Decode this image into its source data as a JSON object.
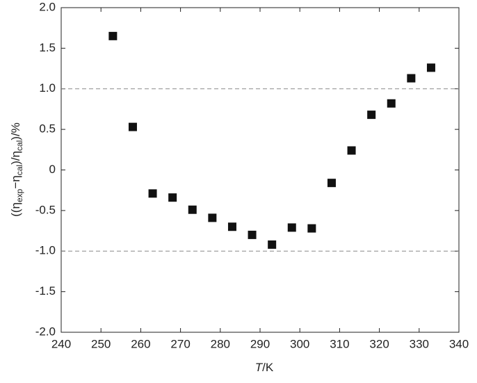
{
  "chart_data": {
    "type": "scatter",
    "x_label": {
      "parts": [
        "T",
        "/K"
      ]
    },
    "y_label": {
      "parts": [
        "((η",
        "exp",
        "−η",
        "cal",
        ")/η",
        "cal",
        ")/%"
      ]
    },
    "x": [
      253,
      258,
      263,
      268,
      273,
      278,
      283,
      288,
      293,
      298,
      303,
      308,
      313,
      318,
      323,
      328,
      333
    ],
    "values": [
      1.65,
      0.53,
      -0.29,
      -0.34,
      -0.49,
      -0.59,
      -0.7,
      -0.8,
      -0.92,
      -0.71,
      -0.72,
      -0.16,
      0.24,
      0.68,
      0.82,
      1.13,
      1.26
    ],
    "color": "#111111",
    "xlim": [
      240,
      340
    ],
    "xticks": [
      240,
      250,
      260,
      270,
      280,
      290,
      300,
      310,
      320,
      330,
      340
    ],
    "ylim": [
      -2,
      2
    ],
    "yticks": [
      {
        "value": 2,
        "label": "2.0"
      },
      {
        "value": 1.5,
        "label": "1.5"
      },
      {
        "value": 1,
        "label": "1.0"
      },
      {
        "value": 0.5,
        "label": "0.5"
      },
      0,
      -0.5,
      {
        "value": -1,
        "label": "-1.0"
      },
      -1.5,
      {
        "value": -2,
        "label": "-2.0"
      }
    ],
    "hlines": [
      1,
      -1
    ]
  }
}
